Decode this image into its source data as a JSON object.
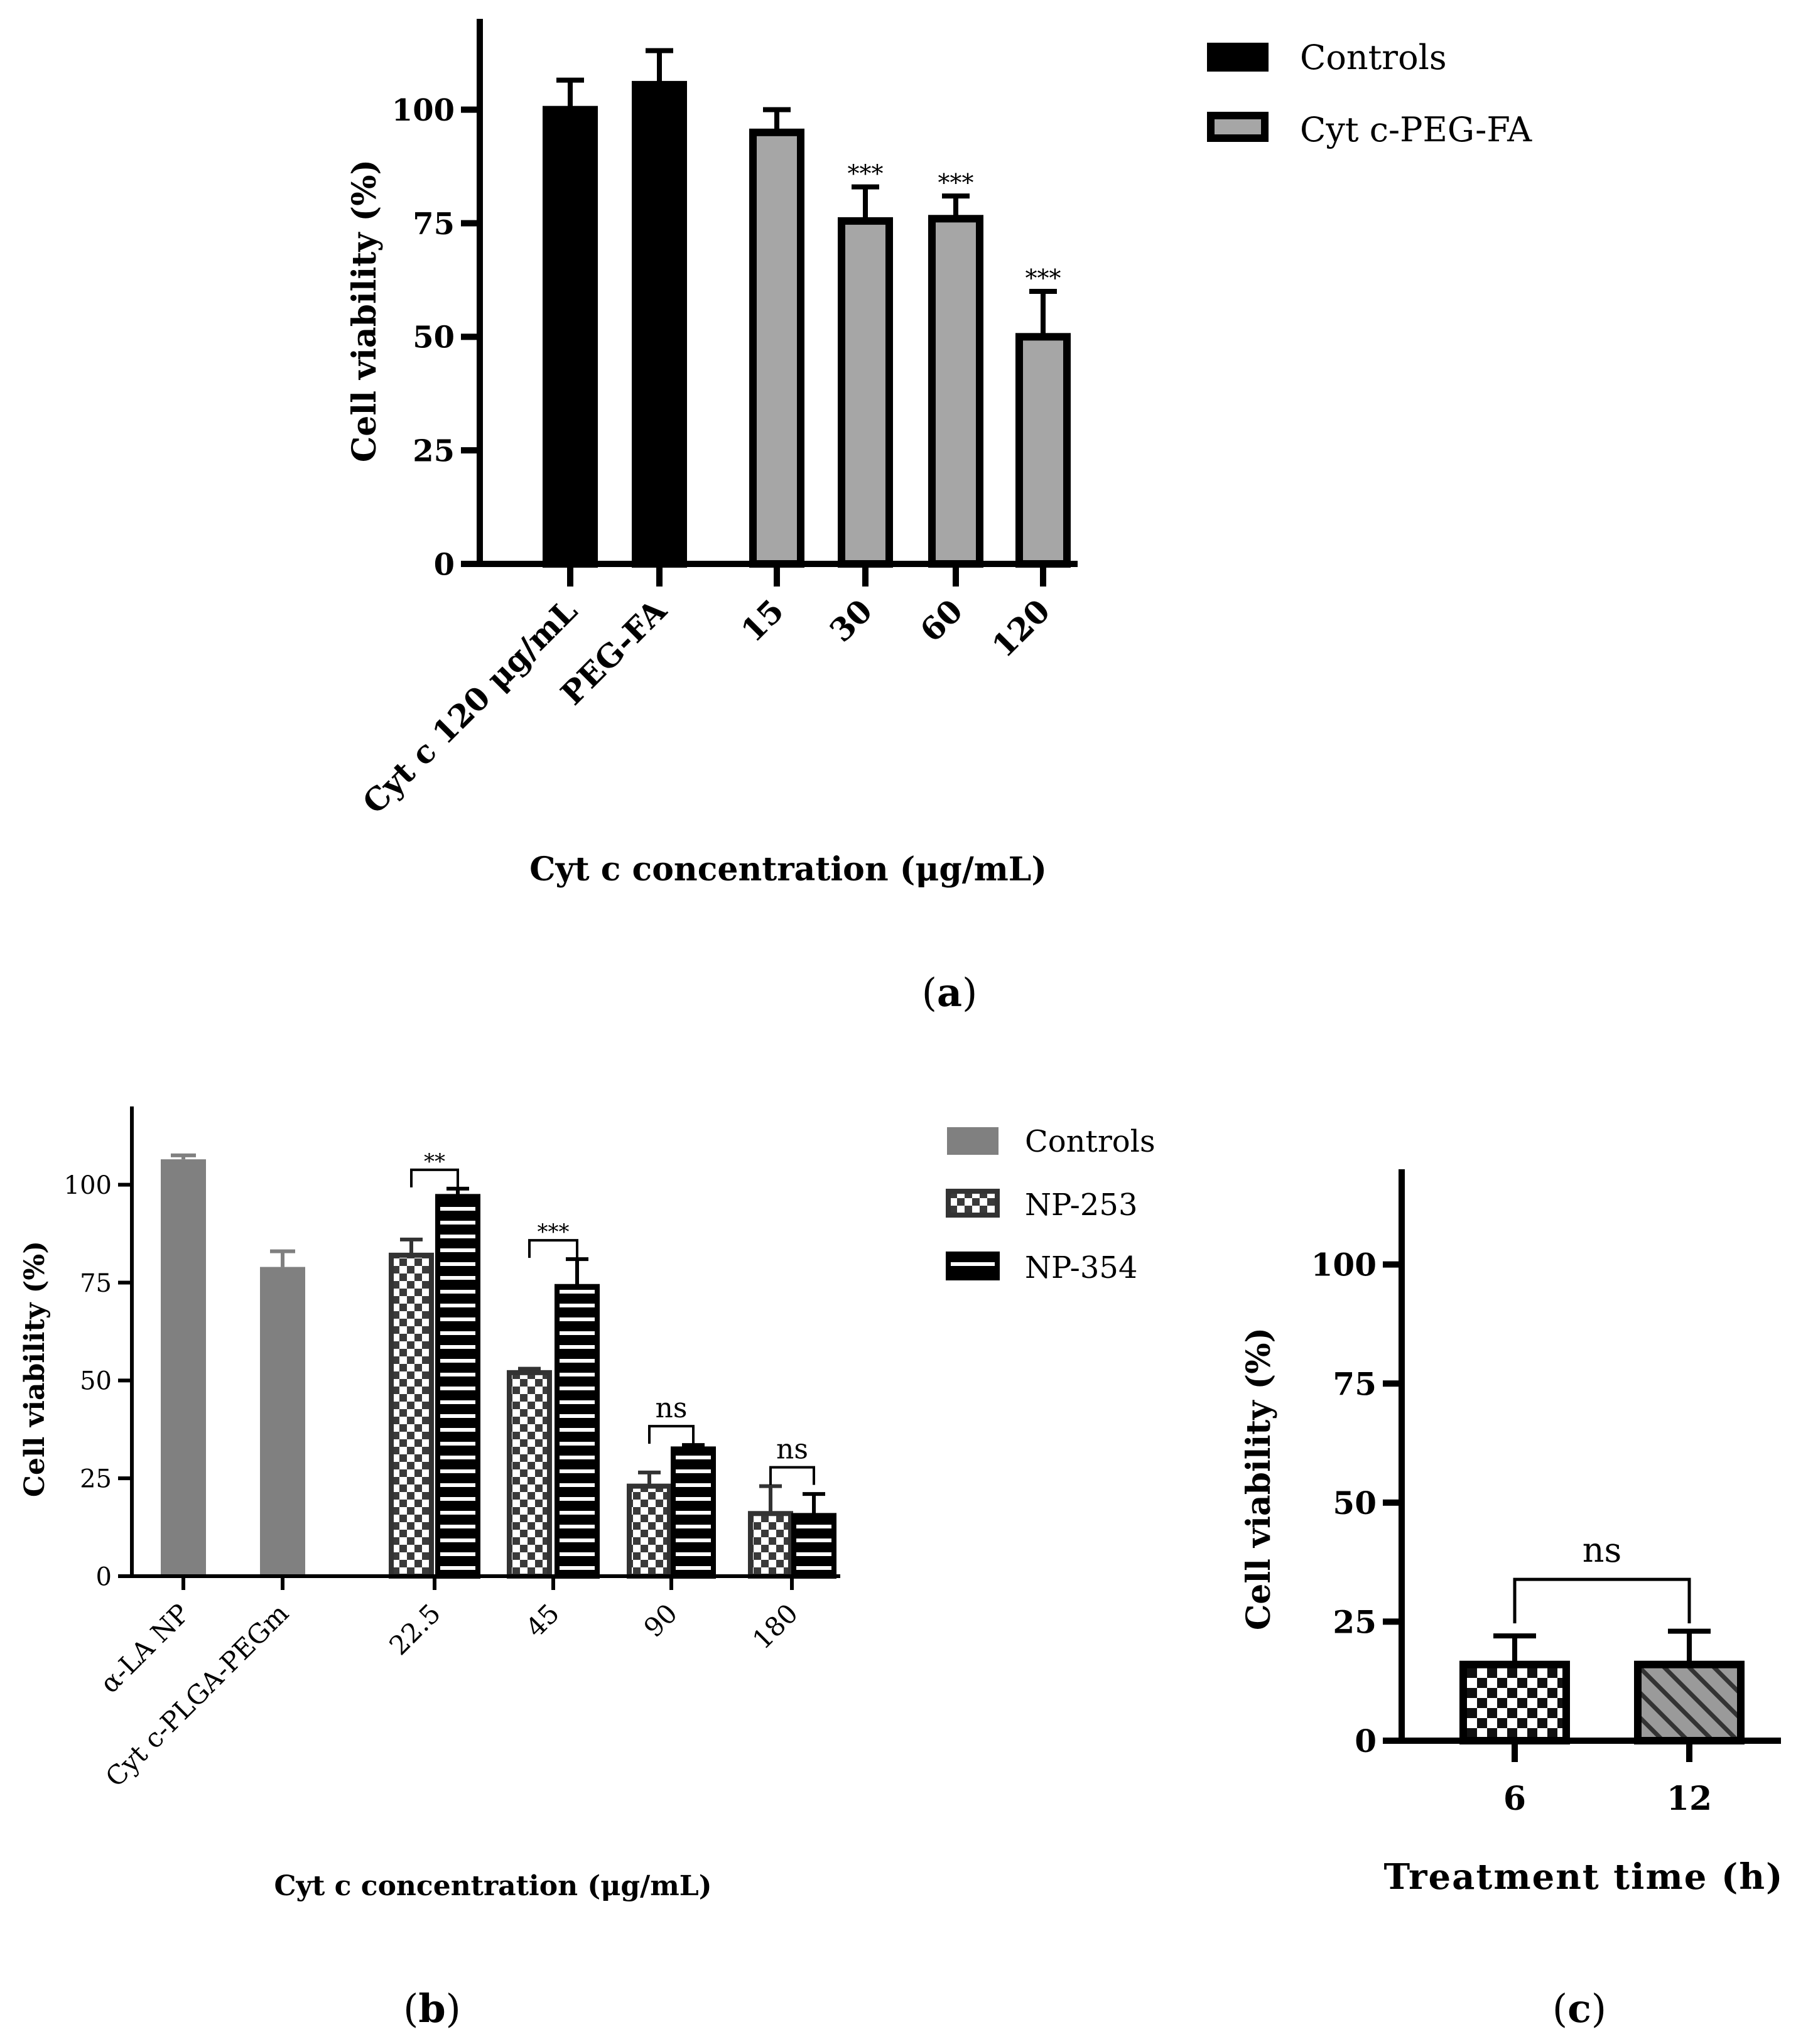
{
  "colors": {
    "black": "#000000",
    "grey_a": "#a6a6a6",
    "grey_b": "#808080",
    "dark_b": "#333333",
    "white": "#ffffff"
  },
  "chart_data": [
    {
      "id": "a",
      "type": "bar",
      "panel_label": "a",
      "title": "",
      "xlabel": "Cyt c concentration (μg/mL)",
      "ylabel": "Cell viability (%)",
      "ylim": [
        0,
        120
      ],
      "yticks": [
        0,
        25,
        50,
        75,
        100
      ],
      "grid": false,
      "legend_position": "top-right",
      "legend": [
        {
          "name": "Controls",
          "pattern": "solid-black"
        },
        {
          "name": "Cyt c-PEG-FA",
          "pattern": "solid-grey"
        }
      ],
      "categories": [
        "Cyt c 120 μg/mL",
        "PEG-FA",
        "15",
        "30",
        "60",
        "120"
      ],
      "values": [
        100,
        105.5,
        95,
        75.5,
        76,
        50
      ],
      "errors": [
        6.5,
        7.5,
        5,
        7.5,
        5,
        10
      ],
      "bar_series": [
        "Controls",
        "Controls",
        "Cyt c-PEG-FA",
        "Cyt c-PEG-FA",
        "Cyt c-PEG-FA",
        "Cyt c-PEG-FA"
      ],
      "significance": [
        "",
        "",
        "",
        "***",
        "***",
        "***"
      ]
    },
    {
      "id": "b",
      "type": "bar",
      "panel_label": "b",
      "title": "",
      "xlabel": "Cyt c concentration (μg/mL)",
      "ylabel": "Cell viability (%)",
      "ylim": [
        0,
        120
      ],
      "yticks": [
        0,
        25,
        50,
        75,
        100
      ],
      "grid": false,
      "legend_position": "top-right",
      "legend": [
        {
          "name": "Controls",
          "pattern": "solid-grey"
        },
        {
          "name": "NP-253",
          "pattern": "checker"
        },
        {
          "name": "NP-354",
          "pattern": "horizontal-stripes"
        }
      ],
      "categories": [
        "α-LA NP",
        "Cyt c-PLGA-PEGm",
        "22.5",
        "45",
        "90",
        "180"
      ],
      "series": [
        {
          "name": "Controls",
          "values": [
            106.5,
            79,
            null,
            null,
            null,
            null
          ],
          "errors": [
            1,
            4,
            null,
            null,
            null,
            null
          ]
        },
        {
          "name": "NP-253",
          "values": [
            null,
            null,
            82,
            52,
            23,
            16
          ],
          "errors": [
            null,
            null,
            4,
            1,
            3.5,
            7
          ]
        },
        {
          "name": "NP-354",
          "values": [
            null,
            null,
            97,
            74,
            32.5,
            15.5
          ],
          "errors": [
            null,
            null,
            2,
            7,
            1,
            5.5
          ]
        }
      ],
      "comparisons": [
        {
          "category": "22.5",
          "label": "**"
        },
        {
          "category": "45",
          "label": "***"
        },
        {
          "category": "90",
          "label": "ns"
        },
        {
          "category": "180",
          "label": "ns"
        }
      ]
    },
    {
      "id": "c",
      "type": "bar",
      "panel_label": "c",
      "title": "",
      "xlabel": "Treatment time (h)",
      "ylabel": "Cell viability (%)",
      "ylim": [
        0,
        120
      ],
      "yticks": [
        0,
        25,
        50,
        75,
        100
      ],
      "grid": false,
      "categories": [
        "6",
        "12"
      ],
      "values": [
        16,
        16
      ],
      "errors": [
        6,
        7
      ],
      "patterns": [
        "checker",
        "diagonal-hatch"
      ],
      "comparisons": [
        {
          "between": [
            "6",
            "12"
          ],
          "label": "ns"
        }
      ]
    }
  ]
}
